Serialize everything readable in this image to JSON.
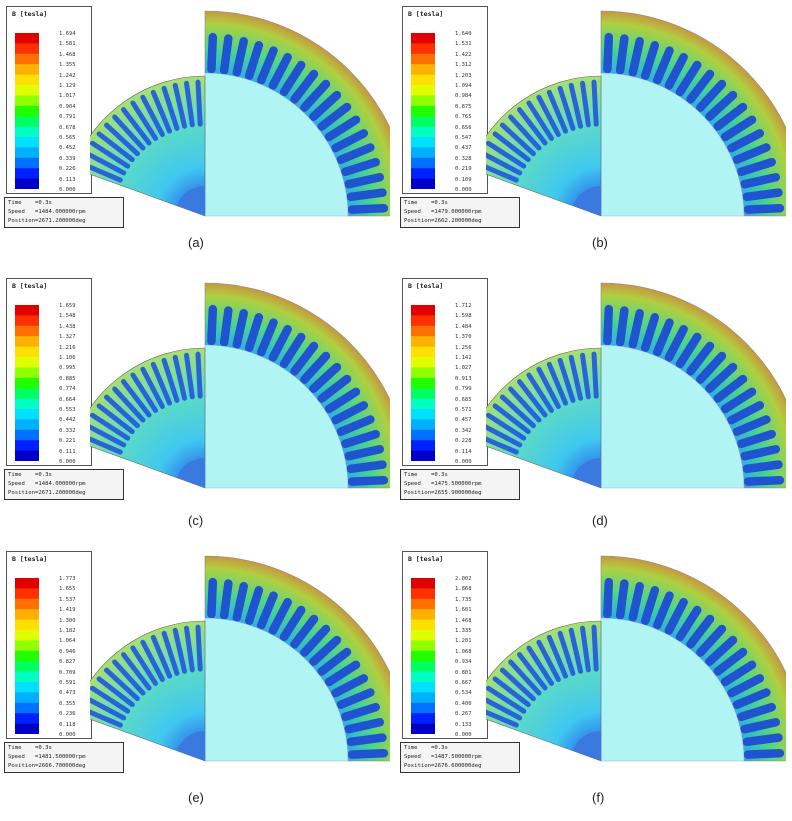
{
  "legend_title": "B [tesla]",
  "colors": {
    "scale": [
      "#0000c8",
      "#0020ff",
      "#0070ff",
      "#00b0ff",
      "#00e0ff",
      "#00ffc0",
      "#00ff60",
      "#20ff00",
      "#90ff00",
      "#e0ff00",
      "#ffe000",
      "#ffb000",
      "#ff7000",
      "#ff3000",
      "#e00000"
    ],
    "stator_back": "#64c85a",
    "airgap_inner": "#b0f4f4",
    "slot": "#1f53d0",
    "hot": "#c0602a"
  },
  "labels": {
    "time": "Time",
    "speed": "Speed",
    "position": "Position"
  },
  "panels": [
    {
      "id": "a",
      "caption": "(a)",
      "ticks": [
        "1.694",
        "1.581",
        "1.468",
        "1.355",
        "1.242",
        "1.129",
        "1.017",
        "0.904",
        "0.791",
        "0.678",
        "0.565",
        "0.452",
        "0.339",
        "0.226",
        "0.113",
        "0.000"
      ],
      "time": "=0.3s",
      "speed": "=1484.000000rpm",
      "position": "=2671.200000deg"
    },
    {
      "id": "b",
      "caption": "(b)",
      "ticks": [
        "1.640",
        "1.531",
        "1.422",
        "1.312",
        "1.203",
        "1.094",
        "0.984",
        "0.875",
        "0.765",
        "0.656",
        "0.547",
        "0.437",
        "0.328",
        "0.219",
        "0.109",
        "0.000"
      ],
      "time": "=0.3s",
      "speed": "=1479.000000rpm",
      "position": "=2662.200000deg"
    },
    {
      "id": "c",
      "caption": "(c)",
      "ticks": [
        "1.659",
        "1.548",
        "1.438",
        "1.327",
        "1.216",
        "1.106",
        "0.995",
        "0.885",
        "0.774",
        "0.664",
        "0.553",
        "0.442",
        "0.332",
        "0.221",
        "0.111",
        "0.000"
      ],
      "time": "=0.3s",
      "speed": "=1484.000000rpm",
      "position": "=2671.200000deg"
    },
    {
      "id": "d",
      "caption": "(d)",
      "ticks": [
        "1.712",
        "1.598",
        "1.484",
        "1.370",
        "1.256",
        "1.142",
        "1.027",
        "0.913",
        "0.799",
        "0.685",
        "0.571",
        "0.457",
        "0.342",
        "0.228",
        "0.114",
        "0.000"
      ],
      "time": "=0.3s",
      "speed": "=1475.500000rpm",
      "position": "=2655.900000deg"
    },
    {
      "id": "e",
      "caption": "(e)",
      "ticks": [
        "1.773",
        "1.655",
        "1.537",
        "1.419",
        "1.300",
        "1.182",
        "1.064",
        "0.946",
        "0.827",
        "0.709",
        "0.591",
        "0.473",
        "0.355",
        "0.236",
        "0.118",
        "0.000"
      ],
      "time": "=0.3s",
      "speed": "=1481.500000rpm",
      "position": "=2666.700000deg"
    },
    {
      "id": "f",
      "caption": "(f)",
      "ticks": [
        "2.002",
        "1.868",
        "1.735",
        "1.601",
        "1.468",
        "1.335",
        "1.201",
        "1.068",
        "0.934",
        "0.801",
        "0.667",
        "0.534",
        "0.400",
        "0.267",
        "0.133",
        "0.000"
      ],
      "time": "=0.3s",
      "speed": "=1487.500000rpm",
      "position": "=2676.600000deg"
    }
  ]
}
